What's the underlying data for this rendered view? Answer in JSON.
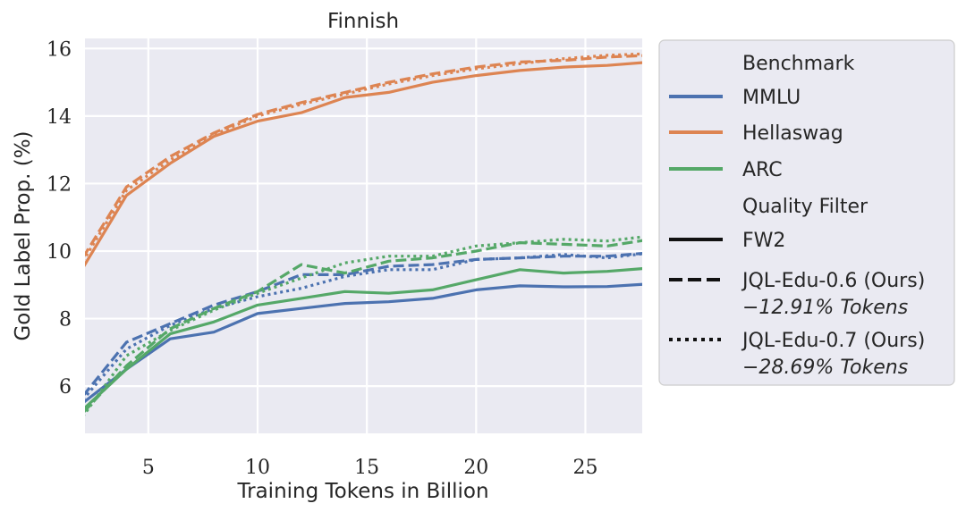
{
  "chart_data": {
    "type": "line",
    "title": "Finnish",
    "xlabel": "Training Tokens in Billion",
    "ylabel": "Gold Label Prop. (%)",
    "xlim": [
      2.1,
      27.6
    ],
    "ylim": [
      4.6,
      16.3
    ],
    "xticks": [
      5,
      10,
      15,
      20,
      25
    ],
    "yticks": [
      6,
      8,
      10,
      12,
      14,
      16
    ],
    "grid": true,
    "legend_placement": "outside-right",
    "legend": {
      "benchmark_title": "Benchmark",
      "benchmarks": [
        {
          "name": "MMLU",
          "color": "#4c72b0"
        },
        {
          "name": "Hellaswag",
          "color": "#dd8452"
        },
        {
          "name": "ARC",
          "color": "#55a868"
        }
      ],
      "filter_title": "Quality Filter",
      "filters": [
        {
          "name": "FW2",
          "style": "solid",
          "note": ""
        },
        {
          "name": "JQL-Edu-0.6 (Ours)",
          "style": "dashed",
          "note": "−12.91% Tokens"
        },
        {
          "name": "JQL-Edu-0.7 (Ours)",
          "style": "dotted",
          "note": "−28.69% Tokens"
        }
      ]
    },
    "x": [
      2,
      4,
      6,
      8,
      10,
      12,
      14,
      16,
      18,
      20,
      22,
      24,
      26,
      28
    ],
    "series": [
      {
        "name": "MMLU",
        "filter": "FW2",
        "values": [
          5.5,
          6.5,
          7.4,
          7.6,
          8.15,
          8.3,
          8.45,
          8.5,
          8.6,
          8.85,
          8.97,
          8.94,
          8.95,
          9.03
        ]
      },
      {
        "name": "MMLU",
        "filter": "JQL-Edu-0.6 (Ours)",
        "values": [
          5.7,
          7.3,
          7.85,
          8.4,
          8.8,
          9.3,
          9.3,
          9.55,
          9.6,
          9.75,
          9.8,
          9.85,
          9.85,
          9.95
        ]
      },
      {
        "name": "MMLU",
        "filter": "JQL-Edu-0.7 (Ours)",
        "values": [
          5.6,
          7.1,
          7.8,
          8.3,
          8.65,
          8.9,
          9.25,
          9.45,
          9.45,
          9.75,
          9.8,
          9.9,
          9.8,
          9.95
        ]
      },
      {
        "name": "Hellaswag",
        "filter": "FW2",
        "values": [
          9.5,
          11.65,
          12.6,
          13.4,
          13.85,
          14.1,
          14.55,
          14.7,
          15.0,
          15.2,
          15.35,
          15.45,
          15.5,
          15.6
        ]
      },
      {
        "name": "Hellaswag",
        "filter": "JQL-Edu-0.6 (Ours)",
        "values": [
          9.8,
          11.9,
          12.8,
          13.5,
          14.05,
          14.4,
          14.7,
          15.0,
          15.25,
          15.45,
          15.6,
          15.65,
          15.75,
          15.8
        ]
      },
      {
        "name": "Hellaswag",
        "filter": "JQL-Edu-0.7 (Ours)",
        "values": [
          9.7,
          11.8,
          12.7,
          13.45,
          14.0,
          14.35,
          14.65,
          14.95,
          15.2,
          15.4,
          15.55,
          15.7,
          15.8,
          15.85
        ]
      },
      {
        "name": "ARC",
        "filter": "FW2",
        "values": [
          5.3,
          6.5,
          7.55,
          7.9,
          8.4,
          8.6,
          8.8,
          8.75,
          8.85,
          9.15,
          9.45,
          9.35,
          9.4,
          9.5
        ]
      },
      {
        "name": "ARC",
        "filter": "JQL-Edu-0.6 (Ours)",
        "values": [
          5.2,
          6.6,
          7.7,
          8.3,
          8.8,
          9.6,
          9.35,
          9.7,
          9.8,
          10.0,
          10.25,
          10.2,
          10.15,
          10.35
        ]
      },
      {
        "name": "ARC",
        "filter": "JQL-Edu-0.7 (Ours)",
        "values": [
          5.1,
          6.9,
          7.65,
          8.25,
          8.75,
          9.2,
          9.65,
          9.85,
          9.85,
          10.15,
          10.25,
          10.35,
          10.3,
          10.45
        ]
      }
    ]
  }
}
